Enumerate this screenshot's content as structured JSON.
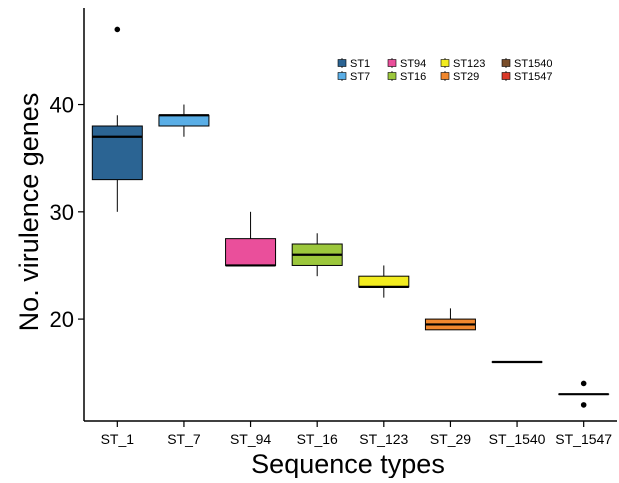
{
  "chart_data": {
    "type": "box",
    "xlabel": "Sequence types",
    "ylabel": "No. virulence genes",
    "ylim": [
      10.5,
      49
    ],
    "yticks": [
      20,
      30,
      40
    ],
    "grid": false,
    "legend_position": "top-right",
    "categories": [
      "ST_1",
      "ST_7",
      "ST_94",
      "ST_16",
      "ST_123",
      "ST_29",
      "ST_1540",
      "ST_1547"
    ],
    "boxes": [
      {
        "category": "ST_1",
        "legend": "ST1",
        "color": "#2b6493",
        "whisker_low": 30,
        "q1": 33,
        "median": 37,
        "q3": 38,
        "whisker_high": 39,
        "outliers": [
          47
        ]
      },
      {
        "category": "ST_7",
        "legend": "ST7",
        "color": "#5aaee6",
        "whisker_low": 37,
        "q1": 38,
        "median": 39,
        "q3": 39,
        "whisker_high": 40,
        "outliers": []
      },
      {
        "category": "ST_94",
        "legend": "ST94",
        "color": "#ea4f9b",
        "whisker_low": 25,
        "q1": 25,
        "median": 25,
        "q3": 27.5,
        "whisker_high": 30,
        "outliers": []
      },
      {
        "category": "ST_16",
        "legend": "ST16",
        "color": "#9cc73c",
        "whisker_low": 24,
        "q1": 25,
        "median": 26,
        "q3": 27,
        "whisker_high": 28,
        "outliers": []
      },
      {
        "category": "ST_123",
        "legend": "ST123",
        "color": "#f2ec1f",
        "whisker_low": 22,
        "q1": 23,
        "median": 23,
        "q3": 24,
        "whisker_high": 25,
        "outliers": []
      },
      {
        "category": "ST_29",
        "legend": "ST29",
        "color": "#f0872e",
        "whisker_low": 19,
        "q1": 19,
        "median": 19.5,
        "q3": 20,
        "whisker_high": 21,
        "outliers": []
      },
      {
        "category": "ST_1540",
        "legend": "ST1540",
        "color": "#7a4e2a",
        "whisker_low": 16,
        "q1": 16,
        "median": 16,
        "q3": 16,
        "whisker_high": 16,
        "outliers": []
      },
      {
        "category": "ST_1547",
        "legend": "ST1547",
        "color": "#d93a2a",
        "whisker_low": 13,
        "q1": 13,
        "median": 13,
        "q3": 13,
        "whisker_high": 13,
        "outliers": [
          14,
          12
        ]
      }
    ],
    "legend_order": [
      "ST1",
      "ST94",
      "ST123",
      "ST1540",
      "ST7",
      "ST16",
      "ST29",
      "ST1547"
    ]
  }
}
